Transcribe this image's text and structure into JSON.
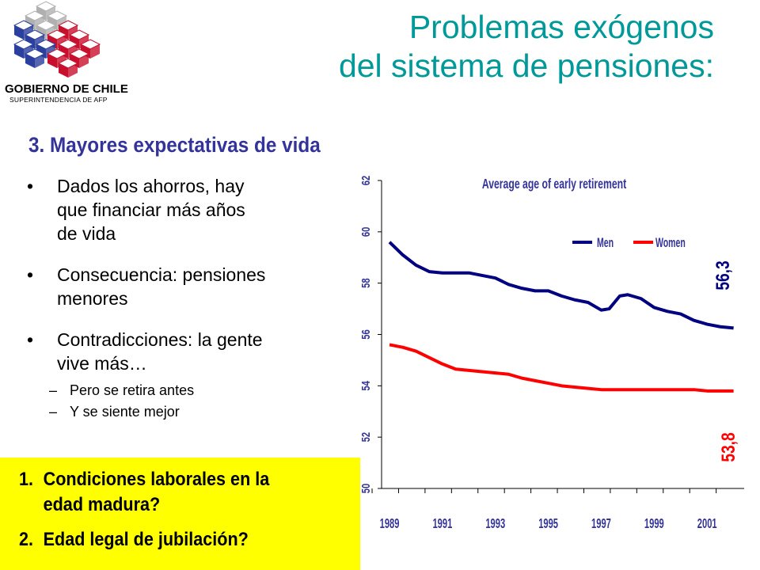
{
  "logo": {
    "line1": "GOBIERNO DE CHILE",
    "line2": "SUPERINTENDENCIA DE AFP",
    "colors": [
      "#c8102e",
      "#2a3f9e",
      "#b0b0b0"
    ]
  },
  "header": {
    "title_line1": "Problemas exógenos",
    "title_line2": "del sistema de pensiones:",
    "title_color": "#009999"
  },
  "section": {
    "subtitle": "3. Mayores expectativas de vida",
    "subtitle_color": "#333399"
  },
  "bullets": [
    {
      "line1": "Dados los ahorros, hay",
      "line2": "que financiar más años",
      "line3": "de vida"
    },
    {
      "line1": "Consecuencia: pensiones",
      "line2": "menores"
    },
    {
      "line1": "Contradicciones: la gente",
      "line2": "vive más…"
    }
  ],
  "bullet_symbol": "•",
  "subbullets": [
    "Pero se retira antes",
    "Y se siente mejor"
  ],
  "subbullet_symbol": "–",
  "questions": {
    "background": "#ffff00",
    "items": [
      {
        "num": "1.",
        "line1": "Condiciones laborales en la",
        "line2": "edad madura?"
      },
      {
        "num": "2.",
        "line1": "Edad legal de jubilación?"
      }
    ]
  },
  "chart_data": {
    "type": "line",
    "title": "Average age of early retirement",
    "x_tick_labels": [
      "1989",
      "1991",
      "1993",
      "1995",
      "1997",
      "1999",
      "2001"
    ],
    "ylim": [
      50,
      62
    ],
    "y_ticks": [
      "50",
      "52",
      "54",
      "56",
      "58",
      "60",
      "62"
    ],
    "legend_position": "top-right",
    "series": [
      {
        "name": "Men",
        "color": "#000080",
        "x": [
          1989,
          1989.5,
          1990,
          1990.5,
          1991,
          1991.5,
          1992,
          1992.5,
          1993,
          1993.5,
          1994,
          1994.5,
          1995,
          1995.5,
          1996,
          1996.5,
          1997,
          1997.3,
          1997.7,
          1998,
          1998.5,
          1999,
          1999.5,
          2000,
          2000.5,
          2001,
          2001.5,
          2002
        ],
        "values": [
          59.6,
          59.1,
          58.7,
          58.45,
          58.4,
          58.4,
          58.4,
          58.3,
          58.2,
          57.95,
          57.8,
          57.7,
          57.7,
          57.5,
          57.35,
          57.25,
          56.95,
          57.0,
          57.5,
          57.55,
          57.4,
          57.05,
          56.9,
          56.8,
          56.55,
          56.4,
          56.3,
          56.25
        ]
      },
      {
        "name": "Women",
        "color": "#ff0000",
        "x": [
          1989,
          1989.5,
          1990,
          1990.5,
          1991,
          1991.5,
          1992,
          1992.5,
          1993,
          1993.5,
          1994,
          1994.5,
          1995,
          1995.5,
          1996,
          1996.5,
          1997,
          1997.5,
          1998,
          1998.5,
          1999,
          1999.5,
          2000,
          2000.5,
          2001,
          2001.5,
          2002
        ],
        "values": [
          55.6,
          55.5,
          55.35,
          55.1,
          54.85,
          54.65,
          54.6,
          54.55,
          54.5,
          54.45,
          54.3,
          54.2,
          54.1,
          54.0,
          53.95,
          53.9,
          53.85,
          53.85,
          53.85,
          53.85,
          53.85,
          53.85,
          53.85,
          53.85,
          53.8,
          53.8,
          53.8
        ]
      }
    ],
    "annotations": [
      {
        "text": "56,3",
        "color": "#000080"
      },
      {
        "text": "53,8",
        "color": "#ff0000"
      }
    ]
  }
}
